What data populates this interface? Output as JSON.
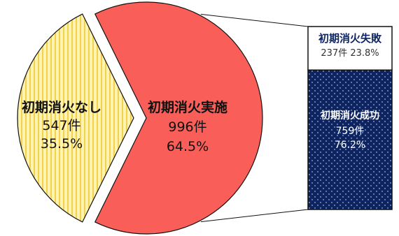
{
  "chart_data": {
    "type": "pie",
    "title": "",
    "slices": [
      {
        "name": "初期消火なし",
        "count": "547件",
        "percent": "35.5%",
        "value": 547,
        "color": "#fff3b0"
      },
      {
        "name": "初期消火実施",
        "count": "996件",
        "percent": "64.5%",
        "value": 996,
        "color": "#f95f58"
      }
    ],
    "breakdown": {
      "type": "stacked-bar",
      "of": "初期消火実施",
      "segments": [
        {
          "name": "初期消火失敗",
          "count": "237件",
          "percent": "23.8%",
          "summary": "237件 23.8%",
          "value": 237,
          "color": "#ffffff"
        },
        {
          "name": "初期消火成功",
          "count": "759件",
          "percent": "76.2%",
          "value": 759,
          "color": "#0e2461"
        }
      ]
    },
    "colors": {
      "stripe": "#f3d04e",
      "outline": "#111111",
      "success_dots": "#9fb0d8"
    }
  }
}
